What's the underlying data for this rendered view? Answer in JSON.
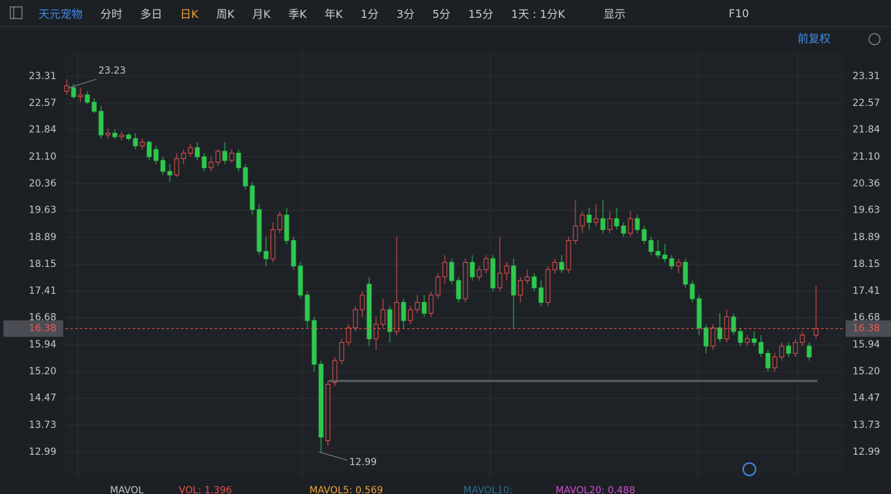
{
  "toolbar": {
    "stock": "天元宠物",
    "periods": [
      "分时",
      "多日",
      "日K",
      "周K",
      "月K",
      "季K",
      "年K",
      "1分",
      "3分",
      "5分",
      "15分"
    ],
    "multi": "1天 : 1分K",
    "display": "显示",
    "f10": "F10"
  },
  "adjust": "前复权",
  "footer": {
    "name": "MAVOL",
    "items": [
      {
        "text": "VOL: 1.396"
      },
      {
        "text": "MAVOL5: 0.569"
      },
      {
        "text": "MAVOL10:"
      },
      {
        "text": "MAVOL20: 0.488"
      }
    ]
  },
  "chart_data": {
    "type": "candlestick",
    "up_color": "#e8524f",
    "down_color": "#2fc84e",
    "ylim": [
      12.27,
      23.99
    ],
    "yticks": [
      23.31,
      22.57,
      21.84,
      {
        "value": 21.1,
        "label": "21.10"
      },
      20.36,
      19.63,
      18.89,
      18.15,
      17.41,
      16.68,
      15.94,
      {
        "value": 15.2,
        "label": "15.20"
      },
      14.47,
      13.73,
      12.99
    ],
    "grid": true,
    "high_label": 23.23,
    "low_label": 12.99,
    "last_price": 16.38,
    "support_line": 14.94,
    "candles": [
      [
        22.9,
        23.23,
        22.8,
        23.05
      ],
      [
        23.0,
        23.1,
        22.7,
        22.75
      ],
      [
        22.75,
        23.0,
        22.6,
        22.8
      ],
      [
        22.8,
        22.9,
        22.55,
        22.6
      ],
      [
        22.6,
        22.7,
        22.3,
        22.35
      ],
      [
        22.35,
        22.5,
        21.6,
        21.7
      ],
      [
        21.7,
        21.9,
        21.6,
        21.75
      ],
      [
        21.75,
        21.85,
        21.6,
        21.65
      ],
      [
        21.65,
        21.8,
        21.55,
        21.7
      ],
      [
        21.7,
        21.75,
        21.55,
        21.6
      ],
      [
        21.6,
        21.75,
        21.3,
        21.4
      ],
      [
        21.4,
        21.6,
        21.3,
        21.5
      ],
      [
        21.5,
        21.55,
        21.0,
        21.1
      ],
      [
        21.3,
        21.4,
        20.9,
        21.0
      ],
      [
        21.0,
        21.1,
        20.6,
        20.7
      ],
      [
        20.7,
        20.9,
        20.4,
        20.6
      ],
      [
        20.6,
        21.2,
        20.55,
        21.05
      ],
      [
        21.05,
        21.3,
        20.9,
        21.2
      ],
      [
        21.2,
        21.45,
        21.1,
        21.35
      ],
      [
        21.35,
        21.5,
        21.0,
        21.1
      ],
      [
        21.1,
        21.2,
        20.7,
        20.8
      ],
      [
        20.8,
        21.1,
        20.7,
        20.95
      ],
      [
        20.95,
        21.3,
        20.85,
        21.25
      ],
      [
        21.25,
        21.5,
        20.9,
        21.0
      ],
      [
        21.0,
        21.3,
        20.95,
        21.2
      ],
      [
        21.2,
        21.3,
        20.7,
        20.8
      ],
      [
        20.8,
        20.9,
        20.2,
        20.3
      ],
      [
        20.3,
        20.4,
        19.5,
        19.65
      ],
      [
        19.65,
        19.8,
        18.4,
        18.5
      ],
      [
        18.5,
        18.9,
        18.1,
        18.3
      ],
      [
        18.3,
        19.3,
        18.2,
        19.1
      ],
      [
        19.1,
        19.6,
        19.0,
        19.5
      ],
      [
        19.5,
        19.7,
        18.7,
        18.8
      ],
      [
        18.8,
        18.9,
        18.0,
        18.1
      ],
      [
        18.1,
        18.2,
        17.2,
        17.3
      ],
      [
        17.3,
        17.4,
        16.4,
        16.6
      ],
      [
        16.6,
        16.7,
        15.2,
        15.4
      ],
      [
        15.4,
        15.5,
        12.99,
        13.4
      ],
      [
        13.3,
        14.95,
        13.15,
        14.85
      ],
      [
        14.9,
        15.6,
        14.8,
        15.5
      ],
      [
        15.5,
        16.1,
        15.4,
        16.0
      ],
      [
        16.0,
        16.5,
        15.9,
        16.4
      ],
      [
        16.4,
        17.0,
        16.3,
        16.9
      ],
      [
        16.9,
        17.4,
        16.7,
        17.3
      ],
      [
        17.6,
        17.8,
        15.9,
        16.1
      ],
      [
        16.1,
        16.7,
        15.8,
        16.5
      ],
      [
        16.5,
        17.2,
        16.4,
        16.9
      ],
      [
        16.9,
        17.0,
        16.0,
        16.3
      ],
      [
        16.3,
        18.9,
        16.2,
        17.1
      ],
      [
        17.1,
        17.2,
        16.4,
        16.6
      ],
      [
        16.6,
        17.0,
        16.5,
        16.9
      ],
      [
        16.9,
        17.3,
        16.8,
        17.1
      ],
      [
        17.1,
        17.3,
        16.7,
        16.8
      ],
      [
        16.8,
        17.4,
        16.7,
        17.3
      ],
      [
        17.3,
        17.9,
        17.2,
        17.8
      ],
      [
        17.8,
        18.4,
        17.6,
        18.2
      ],
      [
        18.2,
        18.3,
        17.6,
        17.7
      ],
      [
        17.7,
        17.8,
        17.1,
        17.2
      ],
      [
        17.2,
        18.3,
        17.1,
        18.2
      ],
      [
        18.2,
        18.4,
        17.7,
        17.8
      ],
      [
        17.8,
        18.1,
        17.7,
        18.0
      ],
      [
        18.0,
        18.4,
        17.9,
        18.3
      ],
      [
        18.3,
        18.4,
        17.4,
        17.5
      ],
      [
        17.5,
        18.9,
        17.4,
        17.9
      ],
      [
        17.9,
        18.2,
        17.7,
        18.1
      ],
      [
        18.1,
        18.3,
        16.4,
        17.3
      ],
      [
        17.3,
        17.8,
        17.1,
        17.7
      ],
      [
        17.7,
        18.0,
        17.6,
        17.8
      ],
      [
        17.8,
        17.9,
        17.4,
        17.5
      ],
      [
        17.5,
        17.7,
        17.0,
        17.1
      ],
      [
        17.1,
        18.1,
        17.0,
        18.0
      ],
      [
        18.0,
        18.3,
        17.9,
        18.2
      ],
      [
        18.2,
        18.4,
        17.9,
        18.0
      ],
      [
        18.0,
        18.9,
        17.9,
        18.8
      ],
      [
        18.8,
        19.9,
        18.7,
        19.2
      ],
      [
        19.2,
        19.6,
        19.0,
        19.5
      ],
      [
        19.5,
        19.7,
        19.1,
        19.3
      ],
      [
        19.3,
        19.8,
        19.2,
        19.4
      ],
      [
        19.4,
        19.9,
        19.0,
        19.1
      ],
      [
        19.1,
        19.6,
        19.0,
        19.4
      ],
      [
        19.4,
        19.7,
        19.1,
        19.2
      ],
      [
        19.2,
        19.3,
        18.9,
        19.0
      ],
      [
        19.0,
        19.6,
        18.9,
        19.4
      ],
      [
        19.4,
        19.5,
        19.0,
        19.1
      ],
      [
        19.1,
        19.2,
        18.7,
        18.8
      ],
      [
        18.8,
        18.9,
        18.4,
        18.5
      ],
      [
        18.5,
        18.8,
        18.3,
        18.4
      ],
      [
        18.4,
        18.7,
        18.2,
        18.3
      ],
      [
        18.3,
        18.4,
        18.0,
        18.1
      ],
      [
        18.1,
        18.3,
        17.9,
        18.2
      ],
      [
        18.2,
        18.3,
        17.5,
        17.6
      ],
      [
        17.6,
        17.7,
        17.1,
        17.2
      ],
      [
        17.2,
        17.3,
        16.2,
        16.4
      ],
      [
        16.4,
        16.5,
        15.7,
        15.9
      ],
      [
        15.9,
        16.5,
        15.8,
        16.4
      ],
      [
        16.4,
        16.8,
        16.0,
        16.1
      ],
      [
        16.1,
        16.9,
        16.0,
        16.7
      ],
      [
        16.7,
        16.8,
        16.2,
        16.3
      ],
      [
        16.3,
        16.4,
        15.9,
        16.0
      ],
      [
        16.0,
        16.2,
        15.9,
        16.1
      ],
      [
        16.1,
        16.3,
        15.9,
        16.0
      ],
      [
        16.0,
        16.2,
        15.6,
        15.7
      ],
      [
        15.7,
        15.8,
        15.2,
        15.3
      ],
      [
        15.3,
        15.7,
        15.2,
        15.6
      ],
      [
        15.6,
        16.0,
        15.5,
        15.9
      ],
      [
        15.9,
        16.0,
        15.6,
        15.7
      ],
      [
        15.7,
        16.1,
        15.6,
        16.0
      ],
      [
        16.0,
        16.3,
        15.9,
        16.2
      ],
      [
        15.9,
        16.0,
        15.5,
        15.6
      ],
      [
        16.2,
        17.55,
        16.1,
        16.38
      ]
    ]
  }
}
